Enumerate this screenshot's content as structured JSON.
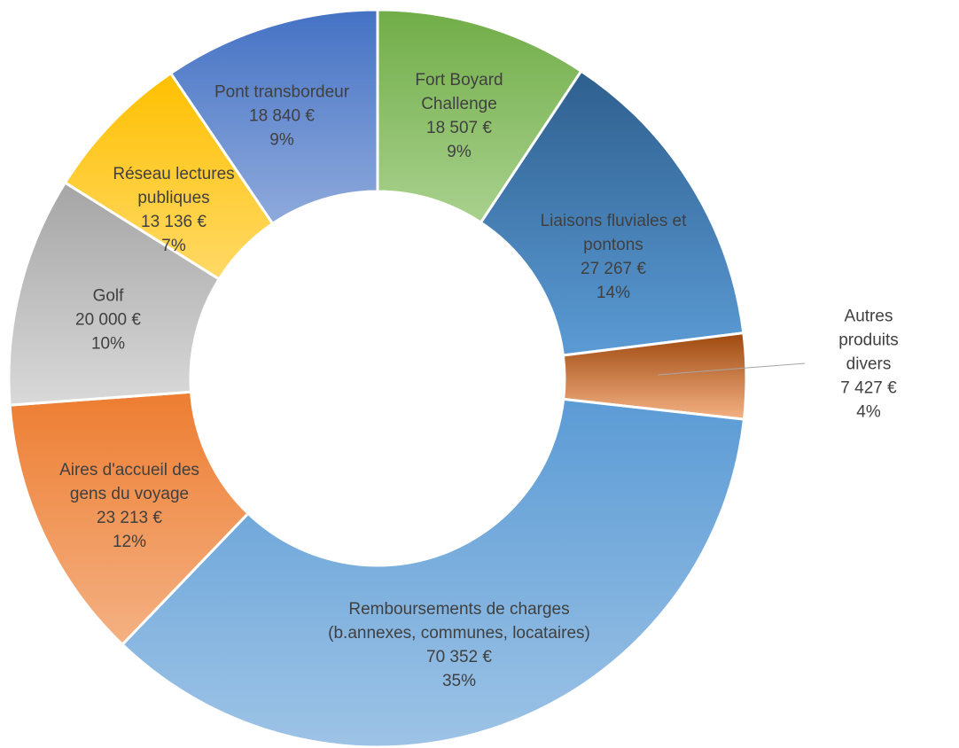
{
  "chart_data": {
    "type": "donut",
    "categories": [
      "Fort Boyard\nChallenge",
      "Liaisons fluviales et\npontons",
      "Autres produits\ndivers",
      "Remboursements de charges\n(b.annexes, communes, locataires)",
      "Aires d'accueil des\ngens du voyage",
      "Golf",
      "Réseau lectures\npubliques",
      "Pont transbordeur"
    ],
    "values": [
      18507,
      27267,
      7427,
      70352,
      23213,
      20000,
      13136,
      18840
    ],
    "value_labels": [
      "18 507 €",
      "27 267 €",
      "7 427 €",
      "70 352 €",
      "23 213 €",
      "20 000 €",
      "13 136 €",
      "18 840 €"
    ],
    "percents": [
      9,
      14,
      4,
      35,
      12,
      10,
      7,
      9
    ],
    "percent_labels": [
      "9%",
      "14%",
      "4%",
      "35%",
      "12%",
      "10%",
      "7%",
      "9%"
    ],
    "colors": [
      [
        "#70ad47",
        "#a9d18e"
      ],
      [
        "#2e5f8e",
        "#5b9bd5"
      ],
      [
        "#9e480e",
        "#f4b183"
      ],
      [
        "#5b9bd5",
        "#9dc3e6"
      ],
      [
        "#ed7d31",
        "#f4b183"
      ],
      [
        "#a5a5a5",
        "#d9d9d9"
      ],
      [
        "#ffc000",
        "#ffd966"
      ],
      [
        "#4472c4",
        "#8faadc"
      ]
    ]
  }
}
